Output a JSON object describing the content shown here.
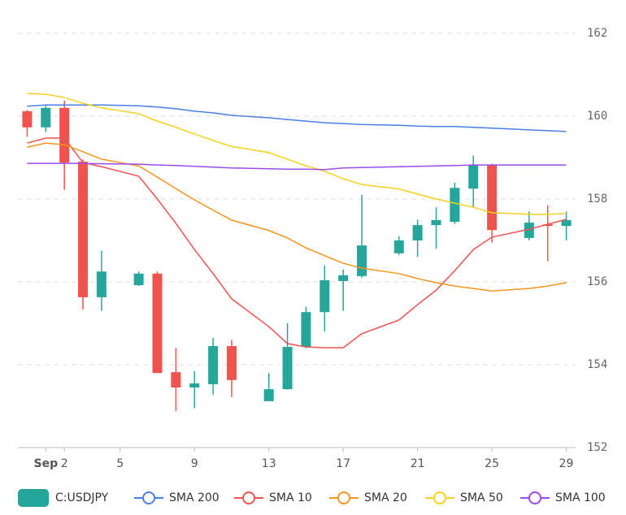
{
  "chart_data": {
    "type": "candlestick",
    "name": "C:USDJPY",
    "up_color": "#26a69a",
    "down_color": "#ef5350",
    "x": [
      0,
      1,
      2,
      3,
      4,
      6,
      7,
      8,
      9,
      10,
      11,
      13,
      14,
      15,
      16,
      17,
      18,
      20,
      21,
      22,
      23,
      24,
      25,
      27,
      28,
      29
    ],
    "open": [
      160.12,
      159.73,
      160.2,
      158.9,
      155.63,
      155.92,
      156.2,
      153.82,
      153.45,
      153.53,
      154.45,
      153.12,
      153.41,
      154.43,
      155.27,
      156.02,
      156.14,
      156.69,
      157.0,
      157.37,
      157.45,
      158.25,
      158.82,
      157.06,
      157.39,
      157.35
    ],
    "high": [
      160.15,
      160.25,
      160.38,
      158.95,
      156.75,
      156.25,
      156.25,
      154.4,
      153.85,
      154.65,
      154.6,
      153.8,
      155.0,
      155.4,
      156.4,
      156.3,
      158.1,
      157.1,
      157.5,
      157.8,
      158.4,
      159.05,
      158.85,
      157.7,
      157.85,
      157.7
    ],
    "low": [
      159.5,
      159.62,
      158.22,
      155.33,
      155.3,
      155.9,
      153.8,
      152.88,
      152.95,
      153.28,
      153.22,
      153.12,
      153.4,
      154.4,
      154.8,
      155.3,
      156.1,
      156.65,
      156.6,
      156.8,
      157.4,
      157.8,
      156.95,
      157.0,
      156.5,
      157.0
    ],
    "close": [
      159.73,
      160.2,
      158.88,
      155.63,
      156.25,
      156.2,
      153.8,
      153.45,
      153.55,
      154.45,
      153.63,
      153.41,
      154.43,
      155.27,
      156.04,
      156.16,
      156.88,
      157.0,
      157.37,
      157.49,
      158.27,
      158.82,
      157.25,
      157.43,
      157.35,
      157.49
    ],
    "series": [
      {
        "name": "SMA 200",
        "color": "#4a7fe8",
        "values": [
          160.24,
          160.27,
          160.27,
          160.27,
          160.27,
          160.25,
          160.22,
          160.18,
          160.12,
          160.08,
          160.02,
          159.96,
          159.92,
          159.88,
          159.84,
          159.82,
          159.8,
          159.78,
          159.76,
          159.75,
          159.75,
          159.73,
          159.71,
          159.67,
          159.65,
          159.63
        ]
      },
      {
        "name": "SMA 10",
        "color": "#ef5350",
        "values": [
          159.35,
          159.47,
          159.47,
          158.88,
          158.78,
          158.55,
          158.0,
          157.41,
          156.78,
          156.2,
          155.59,
          154.92,
          154.51,
          154.43,
          154.41,
          154.41,
          154.75,
          155.08,
          155.45,
          155.8,
          156.27,
          156.78,
          157.08,
          157.27,
          157.39,
          157.51
        ]
      },
      {
        "name": "SMA 20",
        "color": "#f7941d",
        "values": [
          159.25,
          159.35,
          159.31,
          159.14,
          158.96,
          158.8,
          158.53,
          158.25,
          157.98,
          157.73,
          157.49,
          157.24,
          157.06,
          156.82,
          156.63,
          156.45,
          156.33,
          156.2,
          156.08,
          155.98,
          155.9,
          155.84,
          155.78,
          155.84,
          155.9,
          155.98
        ]
      },
      {
        "name": "SMA 50",
        "color": "#f5d020",
        "values": [
          160.55,
          160.53,
          160.45,
          160.31,
          160.2,
          160.06,
          159.88,
          159.73,
          159.57,
          159.41,
          159.27,
          159.12,
          158.96,
          158.8,
          158.67,
          158.49,
          158.35,
          158.24,
          158.12,
          158.0,
          157.9,
          157.8,
          157.67,
          157.63,
          157.63,
          157.65
        ]
      },
      {
        "name": "SMA 100",
        "color": "#9c4be8",
        "values": [
          158.86,
          158.86,
          158.86,
          158.86,
          158.85,
          158.84,
          158.82,
          158.81,
          158.79,
          158.77,
          158.75,
          158.73,
          158.72,
          158.72,
          158.71,
          158.75,
          158.76,
          158.78,
          158.79,
          158.8,
          158.81,
          158.82,
          158.82,
          158.82,
          158.82,
          158.82
        ]
      }
    ],
    "xlim": [
      -0.5,
      29.5
    ],
    "xticks": [
      {
        "value": 1,
        "label": "Sep"
      },
      2,
      5,
      9,
      13,
      17,
      21,
      25,
      29
    ],
    "ylim": [
      152,
      162
    ],
    "yticks": [
      152,
      154,
      156,
      158,
      160,
      162
    ],
    "grid": true
  }
}
